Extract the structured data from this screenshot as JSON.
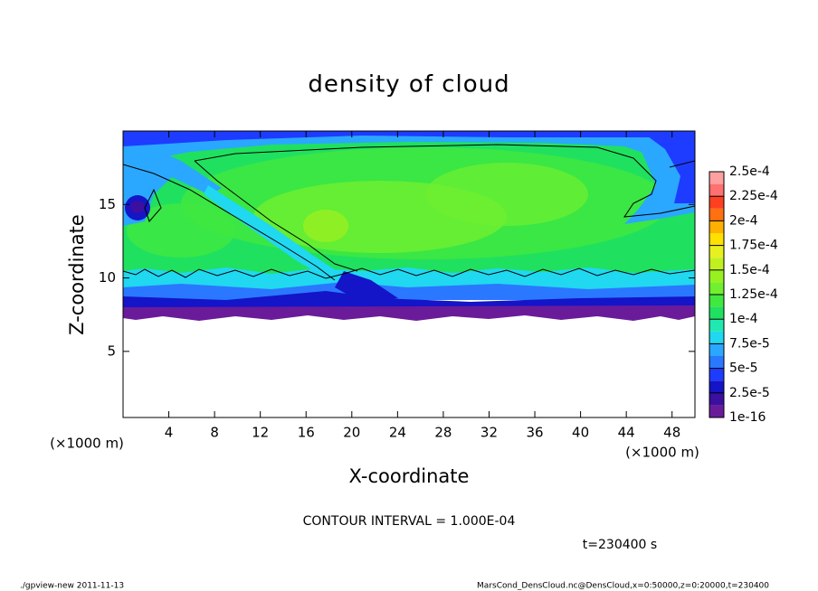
{
  "chart_data": {
    "type": "contour",
    "title": "density of cloud",
    "x_label": "X-coordinate",
    "y_label": "Z-coordinate",
    "x_unit_left": "(×1000 m)",
    "x_unit_right": "(×1000 m)",
    "xlim": [
      0,
      50
    ],
    "xticks": [
      4,
      8,
      12,
      16,
      20,
      24,
      28,
      32,
      36,
      40,
      44,
      48
    ],
    "ylim": [
      0.5,
      20
    ],
    "yticks": [
      5,
      10,
      15
    ],
    "colorbar": {
      "levels": [
        {
          "value": 1e-16,
          "label": "1e-16"
        },
        {
          "value": 2.5e-05,
          "label": "2.5e-5"
        },
        {
          "value": 5e-05,
          "label": "5e-5"
        },
        {
          "value": 7.5e-05,
          "label": "7.5e-5"
        },
        {
          "value": 0.0001,
          "label": "1e-4"
        },
        {
          "value": 0.000125,
          "label": "1.25e-4"
        },
        {
          "value": 0.00015,
          "label": "1.5e-4"
        },
        {
          "value": 0.000175,
          "label": "1.75e-4"
        },
        {
          "value": 0.0002,
          "label": "2e-4"
        },
        {
          "value": 0.000225,
          "label": "2.25e-4"
        },
        {
          "value": 0.00025,
          "label": "2.5e-4"
        }
      ],
      "colors": [
        "#6a1b9a",
        "#3b0fa0",
        "#1414c8",
        "#1e3cff",
        "#2a78ff",
        "#2aa8ff",
        "#20d8f0",
        "#20e8b0",
        "#20e060",
        "#40e840",
        "#70f030",
        "#98f020",
        "#c0f020",
        "#e8f020",
        "#ffe000",
        "#ffb000",
        "#ff7010",
        "#ff4020",
        "#ff7070",
        "#ffa0a0"
      ]
    },
    "contour_interval": "CONTOUR INTERVAL = 1.000E-04",
    "time_label": "t=230400 s",
    "footer_left": "./gpview-new  2011-11-13",
    "footer_right": "MarsCond_DensCloud.nc@DensCloud,x=0:50000,z=0:20000,t=230400"
  }
}
